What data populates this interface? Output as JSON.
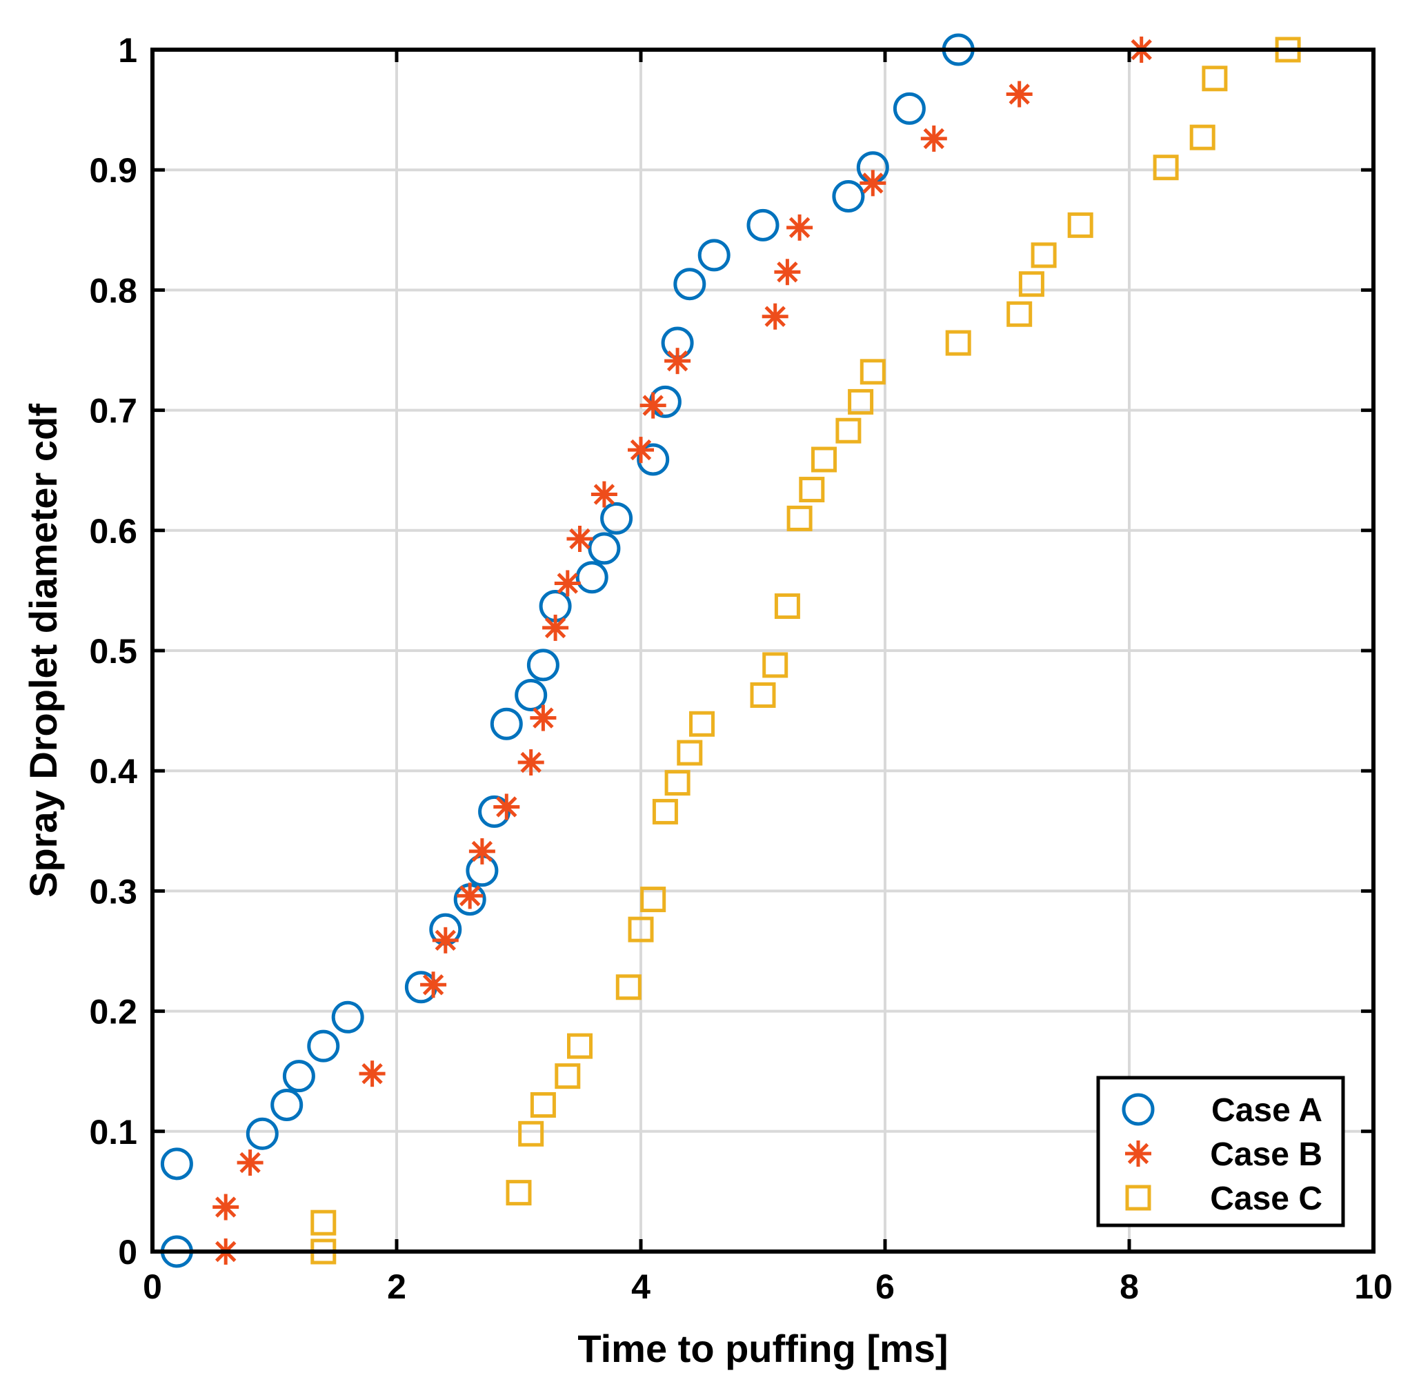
{
  "chart_data": {
    "type": "scatter",
    "title": "",
    "xlabel": "Time to puffing [ms]",
    "ylabel": "Spray Droplet diameter cdf",
    "xlim": [
      0,
      10
    ],
    "ylim": [
      0,
      1
    ],
    "xticks": [
      0,
      2,
      4,
      6,
      8,
      10
    ],
    "yticks": [
      0,
      0.1,
      0.2,
      0.3,
      0.4,
      0.5,
      0.6,
      0.7,
      0.8,
      0.9,
      1
    ],
    "xtick_labels": [
      "0",
      "2",
      "4",
      "6",
      "8",
      "10"
    ],
    "ytick_labels": [
      "0",
      "0.1",
      "0.2",
      "0.3",
      "0.4",
      "0.5",
      "0.6",
      "0.7",
      "0.8",
      "0.9",
      "1"
    ],
    "grid": true,
    "legend_position": "bottom-right",
    "series": [
      {
        "name": "Case A",
        "marker": "circle",
        "color": "#0072BD",
        "points": [
          [
            0.2,
            0.0
          ],
          [
            0.2,
            0.073
          ],
          [
            0.9,
            0.098
          ],
          [
            1.1,
            0.122
          ],
          [
            1.2,
            0.146
          ],
          [
            1.4,
            0.171
          ],
          [
            1.6,
            0.195
          ],
          [
            2.2,
            0.22
          ],
          [
            2.4,
            0.268
          ],
          [
            2.6,
            0.293
          ],
          [
            2.7,
            0.317
          ],
          [
            2.8,
            0.366
          ],
          [
            2.9,
            0.439
          ],
          [
            3.1,
            0.463
          ],
          [
            3.2,
            0.488
          ],
          [
            3.3,
            0.537
          ],
          [
            3.6,
            0.561
          ],
          [
            3.7,
            0.585
          ],
          [
            3.8,
            0.61
          ],
          [
            4.1,
            0.659
          ],
          [
            4.2,
            0.707
          ],
          [
            4.3,
            0.756
          ],
          [
            4.4,
            0.805
          ],
          [
            4.6,
            0.829
          ],
          [
            5.0,
            0.854
          ],
          [
            5.7,
            0.878
          ],
          [
            5.9,
            0.902
          ],
          [
            6.2,
            0.951
          ],
          [
            6.6,
            1.0
          ]
        ]
      },
      {
        "name": "Case B",
        "marker": "asterisk",
        "color": "#EE4D1B",
        "points": [
          [
            0.6,
            0.0
          ],
          [
            0.6,
            0.037
          ],
          [
            0.8,
            0.074
          ],
          [
            1.8,
            0.148
          ],
          [
            2.3,
            0.222
          ],
          [
            2.4,
            0.259
          ],
          [
            2.6,
            0.296
          ],
          [
            2.7,
            0.333
          ],
          [
            2.9,
            0.37
          ],
          [
            3.1,
            0.407
          ],
          [
            3.2,
            0.444
          ],
          [
            3.3,
            0.519
          ],
          [
            3.4,
            0.556
          ],
          [
            3.5,
            0.593
          ],
          [
            3.7,
            0.63
          ],
          [
            4.0,
            0.667
          ],
          [
            4.1,
            0.704
          ],
          [
            4.3,
            0.741
          ],
          [
            5.1,
            0.778
          ],
          [
            5.2,
            0.815
          ],
          [
            5.3,
            0.852
          ],
          [
            5.9,
            0.889
          ],
          [
            6.4,
            0.926
          ],
          [
            7.1,
            0.963
          ],
          [
            8.1,
            1.0
          ]
        ]
      },
      {
        "name": "Case C",
        "marker": "square",
        "color": "#EDB120",
        "points": [
          [
            1.4,
            0.0
          ],
          [
            1.4,
            0.024
          ],
          [
            3.0,
            0.049
          ],
          [
            3.1,
            0.098
          ],
          [
            3.2,
            0.122
          ],
          [
            3.4,
            0.146
          ],
          [
            3.5,
            0.171
          ],
          [
            3.9,
            0.22
          ],
          [
            4.0,
            0.268
          ],
          [
            4.1,
            0.293
          ],
          [
            4.2,
            0.366
          ],
          [
            4.3,
            0.39
          ],
          [
            4.4,
            0.415
          ],
          [
            4.5,
            0.439
          ],
          [
            5.0,
            0.463
          ],
          [
            5.1,
            0.488
          ],
          [
            5.2,
            0.537
          ],
          [
            5.3,
            0.61
          ],
          [
            5.4,
            0.634
          ],
          [
            5.5,
            0.659
          ],
          [
            5.7,
            0.683
          ],
          [
            5.8,
            0.707
          ],
          [
            5.9,
            0.732
          ],
          [
            6.6,
            0.756
          ],
          [
            7.1,
            0.78
          ],
          [
            7.2,
            0.805
          ],
          [
            7.3,
            0.829
          ],
          [
            7.6,
            0.854
          ],
          [
            8.3,
            0.902
          ],
          [
            8.6,
            0.927
          ],
          [
            8.7,
            0.976
          ],
          [
            9.3,
            1.0
          ]
        ]
      }
    ]
  }
}
